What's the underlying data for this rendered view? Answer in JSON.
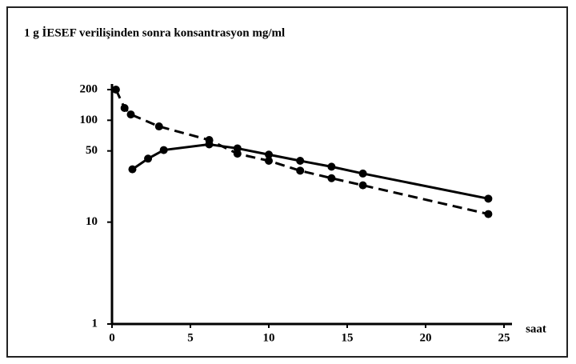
{
  "chart_data": {
    "type": "line",
    "title": "1 g İESEF verilişinden sonra konsantrasyon mg/ml",
    "x_label": "saat",
    "xlim": [
      0,
      25
    ],
    "xticks": [
      0,
      5,
      10,
      15,
      20,
      25
    ],
    "ylim": [
      1,
      200
    ],
    "yticks": [
      1,
      10,
      50,
      100,
      200
    ],
    "log_y": true,
    "series": [
      {
        "color": "#000000",
        "dash": true,
        "x": [
          0.25,
          0.8,
          1.2,
          3,
          6.2,
          8,
          10,
          12,
          14,
          16,
          24
        ],
        "values": [
          200,
          132,
          114,
          87,
          64,
          47,
          40,
          32,
          27,
          23,
          12
        ]
      },
      {
        "color": "#000000",
        "dash": false,
        "x": [
          1.3,
          2.3,
          3.3,
          6.2,
          8,
          10,
          12,
          14,
          16,
          24
        ],
        "values": [
          33,
          42,
          51,
          58,
          53,
          46,
          40,
          35,
          30,
          17
        ]
      }
    ]
  }
}
